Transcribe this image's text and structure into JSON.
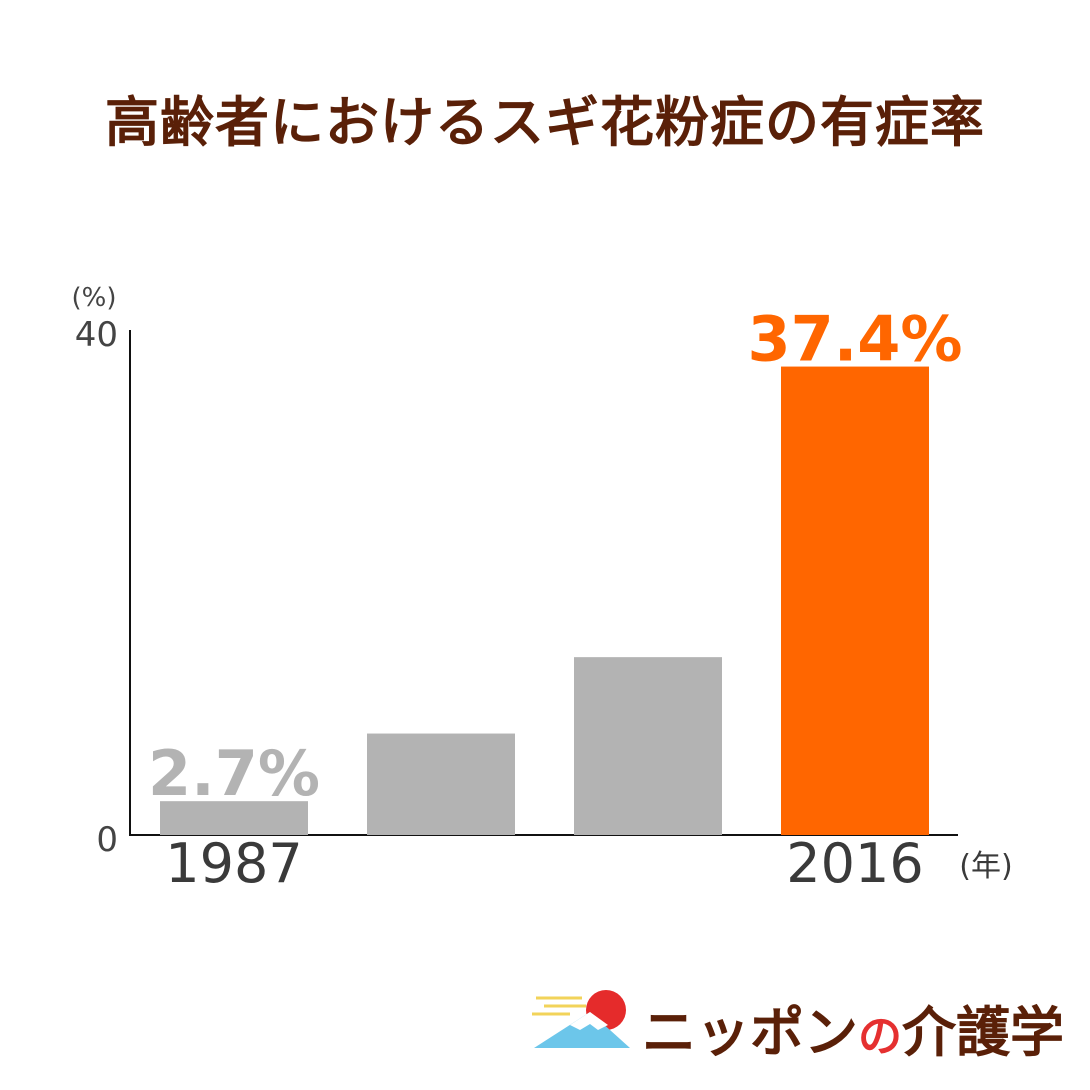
{
  "chart_data": {
    "type": "bar",
    "title": "高齢者におけるスギ花粉症の有症率",
    "y_unit": "(%)",
    "x_unit": "(年)",
    "ylim": [
      0,
      40
    ],
    "yticks": [
      "0",
      "40"
    ],
    "categories": [
      "1987",
      "",
      "",
      "2016"
    ],
    "values": [
      2.7,
      8.1,
      14.2,
      37.4
    ],
    "data_labels": [
      "2.7%",
      "",
      "",
      "37.4%"
    ],
    "colors": [
      "#b3b3b3",
      "#b3b3b3",
      "#b3b3b3",
      "#ff6600"
    ],
    "label_colors": [
      "#b3b3b3",
      "",
      "",
      "#ff6600"
    ],
    "grid": false
  },
  "logo": {
    "text_a": "ニッポン",
    "text_no": "の",
    "text_b": "介護学"
  }
}
